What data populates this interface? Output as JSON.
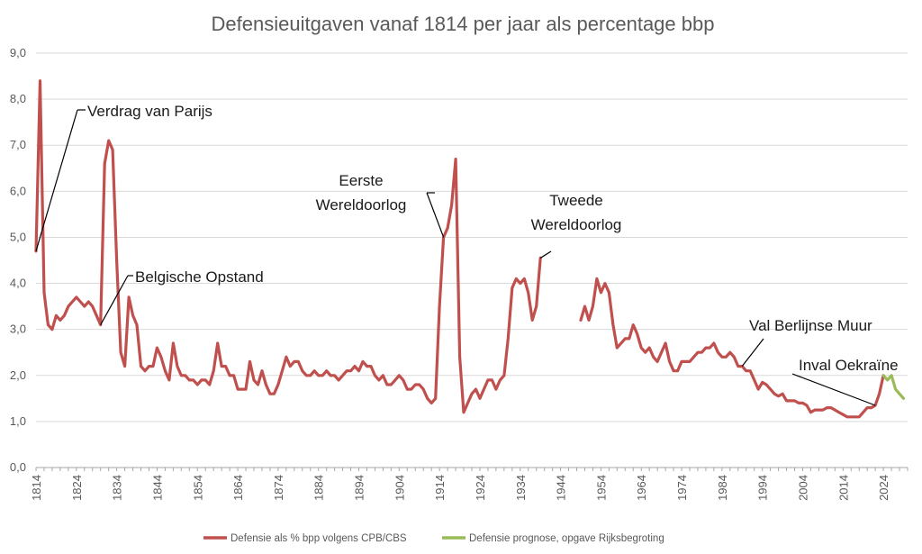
{
  "chart_data": {
    "type": "line",
    "title": "Defensieuitgaven vanaf 1814 per jaar als percentage bbp",
    "xlabel": "",
    "ylabel": "",
    "xlim": [
      1814,
      2030
    ],
    "ylim": [
      0,
      9
    ],
    "y_ticks": [
      "0,0",
      "1,0",
      "2,0",
      "3,0",
      "4,0",
      "5,0",
      "6,0",
      "7,0",
      "8,0",
      "9,0"
    ],
    "x_ticks": [
      "1814",
      "1824",
      "1834",
      "1844",
      "1854",
      "1864",
      "1874",
      "1884",
      "1894",
      "1904",
      "1914",
      "1924",
      "1934",
      "1944",
      "1954",
      "1964",
      "1974",
      "1984",
      "1994",
      "2004",
      "2014",
      "2024"
    ],
    "grid": true,
    "legend_position": "bottom",
    "colors": {
      "historic": "#c0504d",
      "forecast": "#9bbb59",
      "grid": "#d9d9d9"
    },
    "series": [
      {
        "name": "Defensie als % bpp volgens CPB/CBS",
        "segments": [
          [
            [
              1814,
              4.7
            ],
            [
              1815,
              8.4
            ],
            [
              1816,
              3.8
            ],
            [
              1817,
              3.1
            ],
            [
              1818,
              3.0
            ],
            [
              1819,
              3.3
            ],
            [
              1820,
              3.2
            ],
            [
              1821,
              3.3
            ],
            [
              1822,
              3.5
            ],
            [
              1823,
              3.6
            ],
            [
              1824,
              3.7
            ],
            [
              1825,
              3.6
            ],
            [
              1826,
              3.5
            ],
            [
              1827,
              3.6
            ],
            [
              1828,
              3.5
            ],
            [
              1829,
              3.3
            ],
            [
              1830,
              3.1
            ],
            [
              1831,
              6.6
            ],
            [
              1832,
              7.1
            ],
            [
              1833,
              6.9
            ],
            [
              1834,
              4.5
            ],
            [
              1835,
              2.5
            ],
            [
              1836,
              2.2
            ],
            [
              1837,
              3.7
            ],
            [
              1838,
              3.3
            ],
            [
              1839,
              3.1
            ],
            [
              1840,
              2.2
            ],
            [
              1841,
              2.1
            ],
            [
              1842,
              2.2
            ],
            [
              1843,
              2.2
            ],
            [
              1844,
              2.6
            ],
            [
              1845,
              2.4
            ],
            [
              1846,
              2.1
            ],
            [
              1847,
              1.9
            ],
            [
              1848,
              2.7
            ],
            [
              1849,
              2.2
            ],
            [
              1850,
              2.0
            ],
            [
              1851,
              2.0
            ],
            [
              1852,
              1.9
            ],
            [
              1853,
              1.9
            ],
            [
              1854,
              1.8
            ],
            [
              1855,
              1.9
            ],
            [
              1856,
              1.9
            ],
            [
              1857,
              1.8
            ],
            [
              1858,
              2.1
            ],
            [
              1859,
              2.7
            ],
            [
              1860,
              2.2
            ],
            [
              1861,
              2.2
            ],
            [
              1862,
              2.0
            ],
            [
              1863,
              2.0
            ],
            [
              1864,
              1.7
            ],
            [
              1865,
              1.7
            ],
            [
              1866,
              1.7
            ],
            [
              1867,
              2.3
            ],
            [
              1868,
              1.9
            ],
            [
              1869,
              1.8
            ],
            [
              1870,
              2.1
            ],
            [
              1871,
              1.8
            ],
            [
              1872,
              1.6
            ],
            [
              1873,
              1.6
            ],
            [
              1874,
              1.8
            ],
            [
              1875,
              2.1
            ],
            [
              1876,
              2.4
            ],
            [
              1877,
              2.2
            ],
            [
              1878,
              2.3
            ],
            [
              1879,
              2.3
            ],
            [
              1880,
              2.1
            ],
            [
              1881,
              2.0
            ],
            [
              1882,
              2.0
            ],
            [
              1883,
              2.1
            ],
            [
              1884,
              2.0
            ],
            [
              1885,
              2.0
            ],
            [
              1886,
              2.1
            ],
            [
              1887,
              2.0
            ],
            [
              1888,
              2.0
            ],
            [
              1889,
              1.9
            ],
            [
              1890,
              2.0
            ],
            [
              1891,
              2.1
            ],
            [
              1892,
              2.1
            ],
            [
              1893,
              2.2
            ],
            [
              1894,
              2.1
            ],
            [
              1895,
              2.3
            ],
            [
              1896,
              2.2
            ],
            [
              1897,
              2.2
            ],
            [
              1898,
              2.0
            ],
            [
              1899,
              1.9
            ],
            [
              1900,
              2.0
            ],
            [
              1901,
              1.8
            ],
            [
              1902,
              1.8
            ],
            [
              1903,
              1.9
            ],
            [
              1904,
              2.0
            ],
            [
              1905,
              1.9
            ],
            [
              1906,
              1.7
            ],
            [
              1907,
              1.7
            ],
            [
              1908,
              1.8
            ],
            [
              1909,
              1.8
            ],
            [
              1910,
              1.7
            ],
            [
              1911,
              1.5
            ],
            [
              1912,
              1.4
            ],
            [
              1913,
              1.5
            ],
            [
              1914,
              3.5
            ],
            [
              1915,
              5.0
            ],
            [
              1916,
              5.2
            ],
            [
              1917,
              5.7
            ],
            [
              1918,
              6.7
            ],
            [
              1919,
              2.4
            ],
            [
              1920,
              1.2
            ],
            [
              1921,
              1.4
            ],
            [
              1922,
              1.6
            ],
            [
              1923,
              1.7
            ],
            [
              1924,
              1.5
            ],
            [
              1925,
              1.7
            ],
            [
              1926,
              1.9
            ],
            [
              1927,
              1.9
            ],
            [
              1928,
              1.7
            ],
            [
              1929,
              1.9
            ],
            [
              1930,
              2.0
            ],
            [
              1931,
              2.8
            ],
            [
              1932,
              3.9
            ],
            [
              1933,
              4.1
            ],
            [
              1934,
              4.0
            ],
            [
              1935,
              4.1
            ],
            [
              1936,
              3.8
            ],
            [
              1937,
              3.2
            ],
            [
              1938,
              3.5
            ],
            [
              1939,
              4.55
            ]
          ],
          [
            [
              1949,
              3.2
            ],
            [
              1950,
              3.5
            ],
            [
              1951,
              3.2
            ],
            [
              1952,
              3.5
            ],
            [
              1953,
              4.1
            ],
            [
              1954,
              3.8
            ],
            [
              1955,
              4.0
            ],
            [
              1956,
              3.8
            ],
            [
              1957,
              3.1
            ],
            [
              1958,
              2.6
            ],
            [
              1959,
              2.7
            ],
            [
              1960,
              2.8
            ],
            [
              1961,
              2.8
            ],
            [
              1962,
              3.1
            ],
            [
              1963,
              2.9
            ],
            [
              1964,
              2.6
            ],
            [
              1965,
              2.5
            ],
            [
              1966,
              2.6
            ],
            [
              1967,
              2.4
            ],
            [
              1968,
              2.3
            ],
            [
              1969,
              2.5
            ],
            [
              1970,
              2.7
            ],
            [
              1971,
              2.3
            ],
            [
              1972,
              2.1
            ],
            [
              1973,
              2.1
            ],
            [
              1974,
              2.3
            ],
            [
              1975,
              2.3
            ],
            [
              1976,
              2.3
            ],
            [
              1977,
              2.4
            ],
            [
              1978,
              2.5
            ],
            [
              1979,
              2.5
            ],
            [
              1980,
              2.6
            ],
            [
              1981,
              2.6
            ],
            [
              1982,
              2.7
            ],
            [
              1983,
              2.5
            ],
            [
              1984,
              2.4
            ],
            [
              1985,
              2.4
            ],
            [
              1986,
              2.5
            ],
            [
              1987,
              2.4
            ],
            [
              1988,
              2.2
            ],
            [
              1989,
              2.2
            ],
            [
              1990,
              2.1
            ],
            [
              1991,
              2.1
            ],
            [
              1992,
              1.9
            ],
            [
              1993,
              1.7
            ],
            [
              1994,
              1.85
            ],
            [
              1995,
              1.8
            ],
            [
              1996,
              1.7
            ],
            [
              1997,
              1.6
            ],
            [
              1998,
              1.55
            ],
            [
              1999,
              1.6
            ],
            [
              2000,
              1.45
            ],
            [
              2001,
              1.45
            ],
            [
              2002,
              1.45
            ],
            [
              2003,
              1.4
            ],
            [
              2004,
              1.4
            ],
            [
              2005,
              1.35
            ],
            [
              2006,
              1.2
            ],
            [
              2007,
              1.25
            ],
            [
              2008,
              1.25
            ],
            [
              2009,
              1.25
            ],
            [
              2010,
              1.3
            ],
            [
              2011,
              1.3
            ],
            [
              2012,
              1.25
            ],
            [
              2013,
              1.2
            ],
            [
              2014,
              1.15
            ],
            [
              2015,
              1.1
            ],
            [
              2016,
              1.1
            ],
            [
              2017,
              1.1
            ],
            [
              2018,
              1.1
            ],
            [
              2019,
              1.2
            ],
            [
              2020,
              1.3
            ],
            [
              2021,
              1.3
            ],
            [
              2022,
              1.35
            ],
            [
              2023,
              1.6
            ],
            [
              2024,
              2.0
            ]
          ]
        ]
      },
      {
        "name": "Defensie prognose, opgave Rijksbegroting",
        "segments": [
          [
            [
              2024,
              2.0
            ],
            [
              2025,
              1.9
            ],
            [
              2026,
              2.0
            ],
            [
              2027,
              1.7
            ],
            [
              2028,
              1.6
            ],
            [
              2029,
              1.5
            ]
          ]
        ]
      }
    ],
    "annotations": [
      {
        "lines": [
          "Verdrag van Parijs"
        ],
        "target": [
          1814,
          4.7
        ],
        "anchor": "left"
      },
      {
        "lines": [
          "Belgische Opstand"
        ],
        "target": [
          1830,
          3.1
        ],
        "anchor": "left"
      },
      {
        "lines": [
          "Eerste",
          "Wereldoorlog"
        ],
        "target": [
          1915,
          5.0
        ],
        "anchor": "center"
      },
      {
        "lines": [
          "Tweede",
          "Wereldoorlog"
        ],
        "target": [
          1939,
          4.55
        ],
        "anchor": "center"
      },
      {
        "lines": [
          "Val Berlijnse Muur"
        ],
        "target": [
          1989,
          2.2
        ],
        "anchor": "left"
      },
      {
        "lines": [
          "Inval Oekraïne"
        ],
        "target": [
          2022,
          1.35
        ],
        "anchor": "left"
      }
    ]
  }
}
